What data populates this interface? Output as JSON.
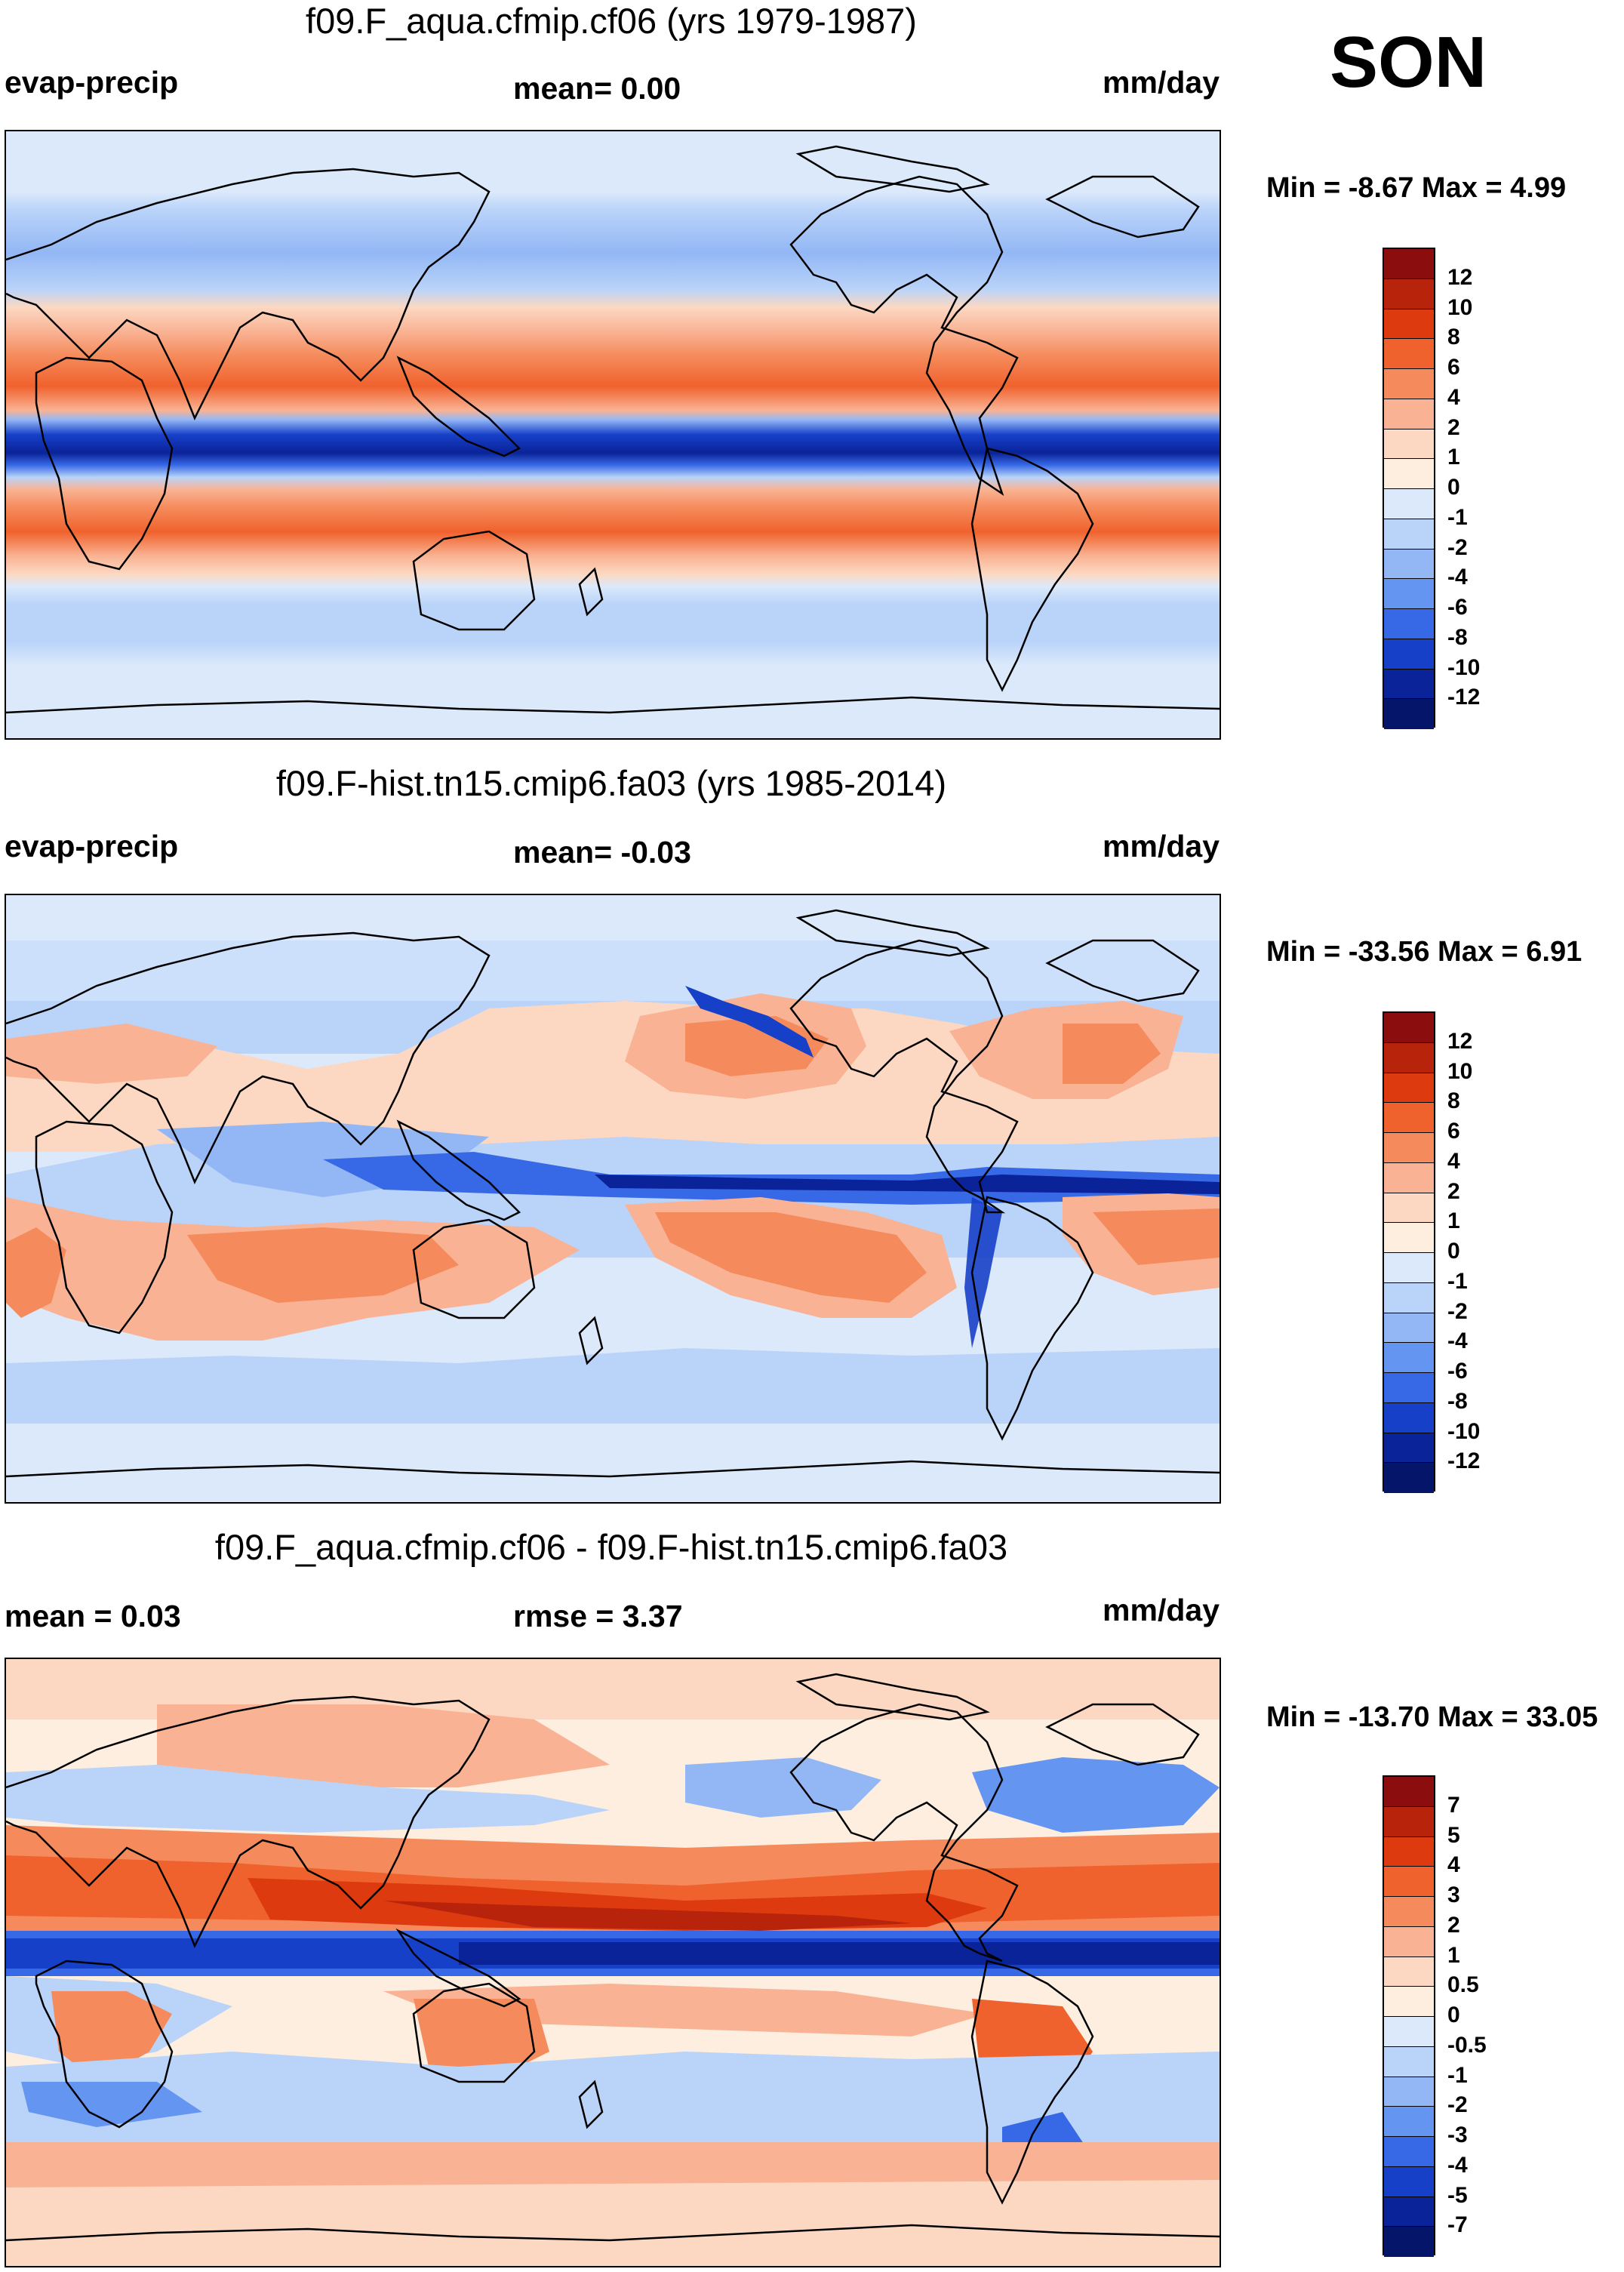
{
  "season": "SON",
  "panels": [
    {
      "title": "f09.F_aqua.cfmip.cf06 (yrs 1979-1987)",
      "left_label": "evap-precip",
      "center_label": "mean=   0.00",
      "right_label": "mm/day",
      "min_max": "Min =  -8.67 Max =   4.99",
      "map_name": "aqua-planet-evap-precip-map"
    },
    {
      "title": "f09.F-hist.tn15.cmip6.fa03 (yrs 1985-2014)",
      "left_label": "evap-precip",
      "center_label": "mean=  -0.03",
      "right_label": "mm/day",
      "min_max": "Min = -33.56 Max =   6.91",
      "map_name": "historical-evap-precip-map"
    },
    {
      "title": "f09.F_aqua.cfmip.cf06 - f09.F-hist.tn15.cmip6.fa03",
      "left_label": "mean =   0.03",
      "center_label": "rmse =   3.37",
      "right_label": "mm/day",
      "min_max": "Min = -13.70 Max =  33.05",
      "map_name": "difference-evap-precip-map"
    }
  ],
  "colorbars": [
    {
      "labels": [
        "12",
        "10",
        "8",
        "6",
        "4",
        "2",
        "1",
        "0",
        "-1",
        "-2",
        "-4",
        "-6",
        "-8",
        "-10",
        "-12"
      ],
      "colors": [
        "#8b0d0d",
        "#b8230c",
        "#dd3a0f",
        "#f0622d",
        "#f58b5c",
        "#f9b394",
        "#fcd8c2",
        "#fdeedf",
        "#dbe9fb",
        "#b9d3f9",
        "#93b7f5",
        "#6495f0",
        "#3769e6",
        "#1740c8",
        "#0a2398",
        "#05156a"
      ]
    },
    {
      "labels": [
        "12",
        "10",
        "8",
        "6",
        "4",
        "2",
        "1",
        "0",
        "-1",
        "-2",
        "-4",
        "-6",
        "-8",
        "-10",
        "-12"
      ],
      "colors": [
        "#8b0d0d",
        "#b8230c",
        "#dd3a0f",
        "#f0622d",
        "#f58b5c",
        "#f9b394",
        "#fcd8c2",
        "#fdeedf",
        "#dbe9fb",
        "#b9d3f9",
        "#93b7f5",
        "#6495f0",
        "#3769e6",
        "#1740c8",
        "#0a2398",
        "#05156a"
      ]
    },
    {
      "labels": [
        "7",
        "5",
        "4",
        "3",
        "2",
        "1",
        "0.5",
        "0",
        "-0.5",
        "-1",
        "-2",
        "-3",
        "-4",
        "-5",
        "-7"
      ],
      "colors": [
        "#8b0d0d",
        "#b8230c",
        "#dd3a0f",
        "#f0622d",
        "#f58b5c",
        "#f9b394",
        "#fcd8c2",
        "#fdeedf",
        "#dbe9fb",
        "#b9d3f9",
        "#93b7f5",
        "#6495f0",
        "#3769e6",
        "#1740c8",
        "#0a2398",
        "#05156a"
      ]
    }
  ]
}
